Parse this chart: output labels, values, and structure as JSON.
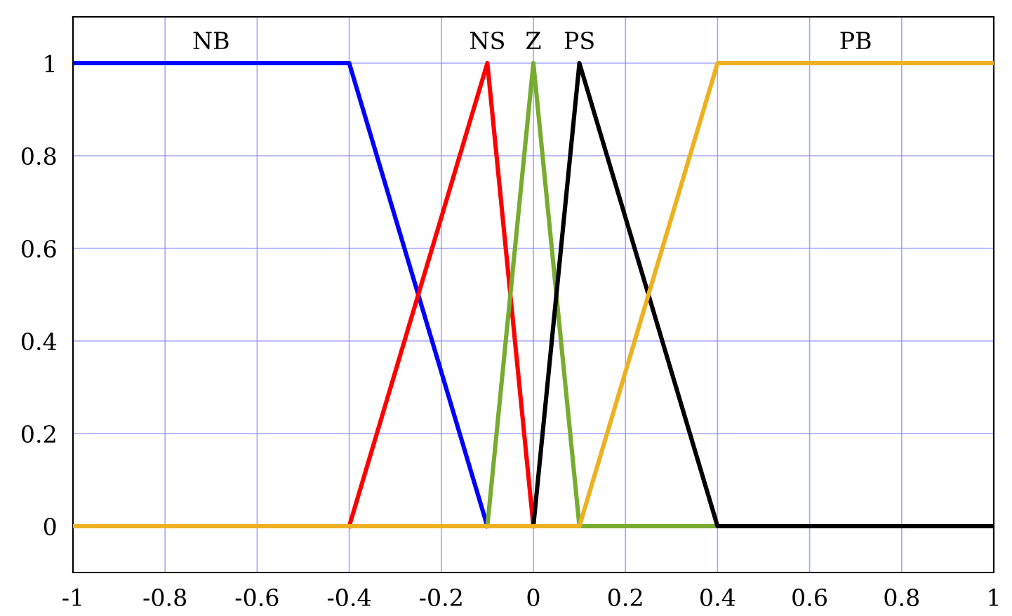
{
  "chart_data": {
    "type": "line",
    "xlim": [
      -1,
      1
    ],
    "ylim": [
      -0.1,
      1.1
    ],
    "xticks": [
      -1,
      -0.8,
      -0.6,
      -0.4,
      -0.2,
      0,
      0.2,
      0.4,
      0.6,
      0.8,
      1
    ],
    "yticks": [
      0,
      0.2,
      0.4,
      0.6,
      0.8,
      1
    ],
    "grid": true,
    "marker": "none",
    "line_style": "solid",
    "series": [
      {
        "name": "NB",
        "color": "#0000ff",
        "x": [
          -1,
          -0.4,
          -0.1
        ],
        "values": [
          1,
          1,
          0
        ]
      },
      {
        "name": "NS",
        "color": "#ff0000",
        "x": [
          -0.4,
          -0.1,
          0
        ],
        "values": [
          0,
          1,
          0
        ]
      },
      {
        "name": "Z",
        "color": "#77ac30",
        "x": [
          -0.1,
          0,
          0.1,
          0.4
        ],
        "values": [
          0,
          1,
          0,
          0
        ]
      },
      {
        "name": "PS",
        "color": "#000000",
        "x": [
          0,
          0.1,
          0.4,
          1
        ],
        "values": [
          0,
          1,
          0,
          0
        ]
      },
      {
        "name": "PB",
        "color": "#edb120",
        "x": [
          -1,
          0.1,
          0.4,
          1
        ],
        "values": [
          0,
          0,
          1,
          1
        ]
      }
    ]
  }
}
